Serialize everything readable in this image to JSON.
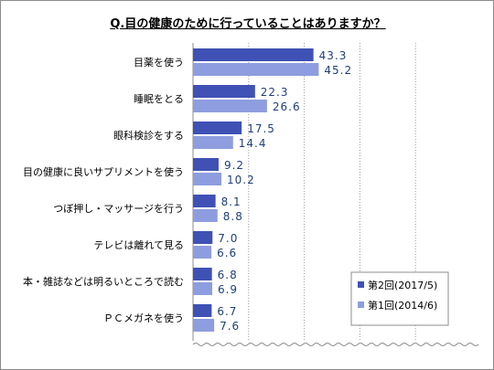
{
  "chart_data": {
    "type": "bar",
    "orientation": "horizontal",
    "title": "Q.目の健康のために行っていることはありますか？",
    "categories": [
      "目薬を使う",
      "睡眠をとる",
      "眼科検診をする",
      "目の健康に良いサプリメントを使う",
      "つぼ押し・マッサージを行う",
      "テレビは離れて見る",
      "本・雑誌などは明るいところで読む",
      "ＰＣメガネを使う"
    ],
    "series": [
      {
        "name": "第2回(2017/5)",
        "values": [
          43.3,
          22.3,
          17.5,
          9.2,
          8.1,
          7.0,
          6.8,
          6.7
        ],
        "labels": [
          "43.3",
          "22.3",
          "17.5",
          "9.2",
          "8.1",
          "7.0",
          "6.8",
          "6.7"
        ],
        "color": "#3f51b5"
      },
      {
        "name": "第1回(2014/6)",
        "values": [
          45.2,
          26.6,
          14.4,
          10.2,
          8.8,
          6.6,
          6.9,
          7.6
        ],
        "labels": [
          "45.2",
          "26.6",
          "14.4",
          "10.2",
          "8.8",
          "6.6",
          "6.9",
          "7.6"
        ],
        "color": "#8e9ddf"
      }
    ],
    "xlim": [
      0,
      100
    ],
    "grid": true,
    "legend_position": "bottom-right",
    "label_color": "#1f3f7a",
    "axis_break": true
  }
}
